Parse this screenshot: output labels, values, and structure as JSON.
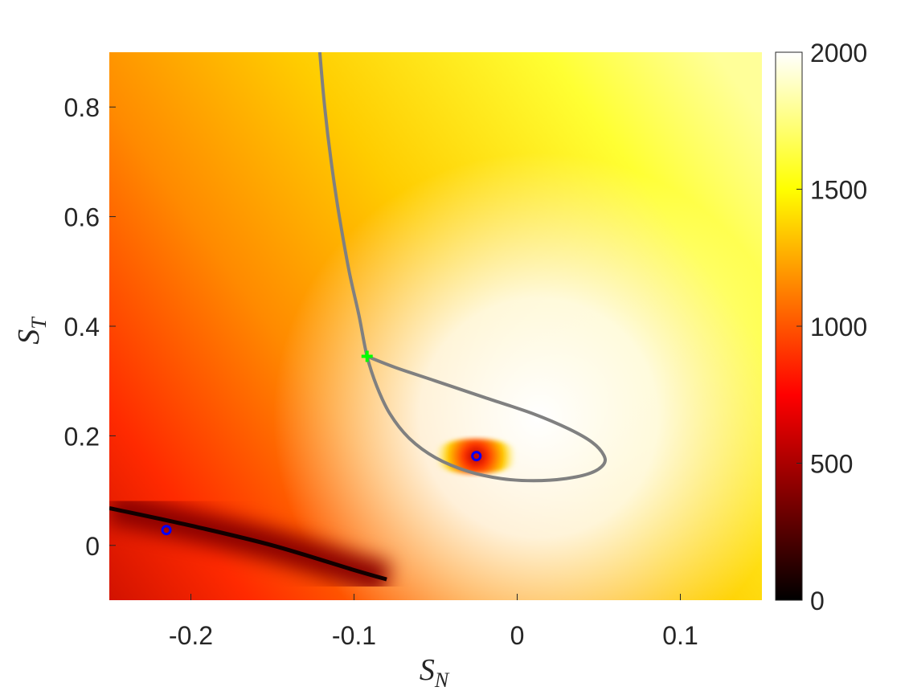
{
  "chart_data": {
    "type": "heatmap",
    "title": "",
    "xlabel": {
      "main": "S",
      "sub": "N"
    },
    "ylabel": {
      "main": "S",
      "sub": "T"
    },
    "xlim": [
      -0.25,
      0.15
    ],
    "ylim": [
      -0.1,
      0.9
    ],
    "xticks": [
      {
        "value": -0.2,
        "label": "-0.2"
      },
      {
        "value": -0.1,
        "label": "-0.1"
      },
      {
        "value": 0,
        "label": "0"
      },
      {
        "value": 0.1,
        "label": "0.1"
      }
    ],
    "yticks": [
      {
        "value": 0,
        "label": "0"
      },
      {
        "value": 0.2,
        "label": "0.2"
      },
      {
        "value": 0.4,
        "label": "0.4"
      },
      {
        "value": 0.6,
        "label": "0.6"
      },
      {
        "value": 0.8,
        "label": "0.8"
      }
    ],
    "colorbar": {
      "colormap": "hot",
      "clim": [
        0,
        2000
      ],
      "ticks": [
        {
          "value": 0,
          "label": "0"
        },
        {
          "value": 500,
          "label": "500"
        },
        {
          "value": 1000,
          "label": "1000"
        },
        {
          "value": 1500,
          "label": "1500"
        },
        {
          "value": 2000,
          "label": "2000"
        }
      ]
    },
    "dark_valley_line": [
      [
        -0.25,
        0.068
      ],
      [
        -0.2,
        0.036
      ],
      [
        -0.15,
        0.0
      ],
      [
        -0.1,
        -0.045
      ],
      [
        -0.08,
        -0.062
      ]
    ],
    "boundary_curve": [
      [
        -0.121,
        0.9
      ],
      [
        -0.118,
        0.8
      ],
      [
        -0.114,
        0.7
      ],
      [
        -0.109,
        0.6
      ],
      [
        -0.103,
        0.5
      ],
      [
        -0.097,
        0.42
      ],
      [
        -0.092,
        0.345
      ],
      [
        -0.086,
        0.29
      ],
      [
        -0.078,
        0.24
      ],
      [
        -0.066,
        0.195
      ],
      [
        -0.05,
        0.16
      ],
      [
        -0.03,
        0.135
      ],
      [
        -0.01,
        0.122
      ],
      [
        0.01,
        0.118
      ],
      [
        0.03,
        0.122
      ],
      [
        0.045,
        0.132
      ],
      [
        0.053,
        0.148
      ],
      [
        0.053,
        0.165
      ],
      [
        0.046,
        0.188
      ],
      [
        0.032,
        0.212
      ],
      [
        0.01,
        0.24
      ],
      [
        -0.02,
        0.27
      ],
      [
        -0.05,
        0.3
      ],
      [
        -0.075,
        0.325
      ],
      [
        -0.092,
        0.345
      ]
    ],
    "markers": [
      {
        "label": "blue-circle",
        "shape": "circle",
        "color": "#0000ff",
        "x": -0.215,
        "y": 0.028
      },
      {
        "label": "blue-circle",
        "shape": "circle",
        "color": "#0000ff",
        "x": -0.025,
        "y": 0.163
      },
      {
        "label": "green-plus",
        "shape": "plus",
        "color": "#00ff00",
        "x": -0.092,
        "y": 0.345
      }
    ],
    "colors": {
      "boundary": "#808080",
      "axes_text": "#262626"
    }
  }
}
